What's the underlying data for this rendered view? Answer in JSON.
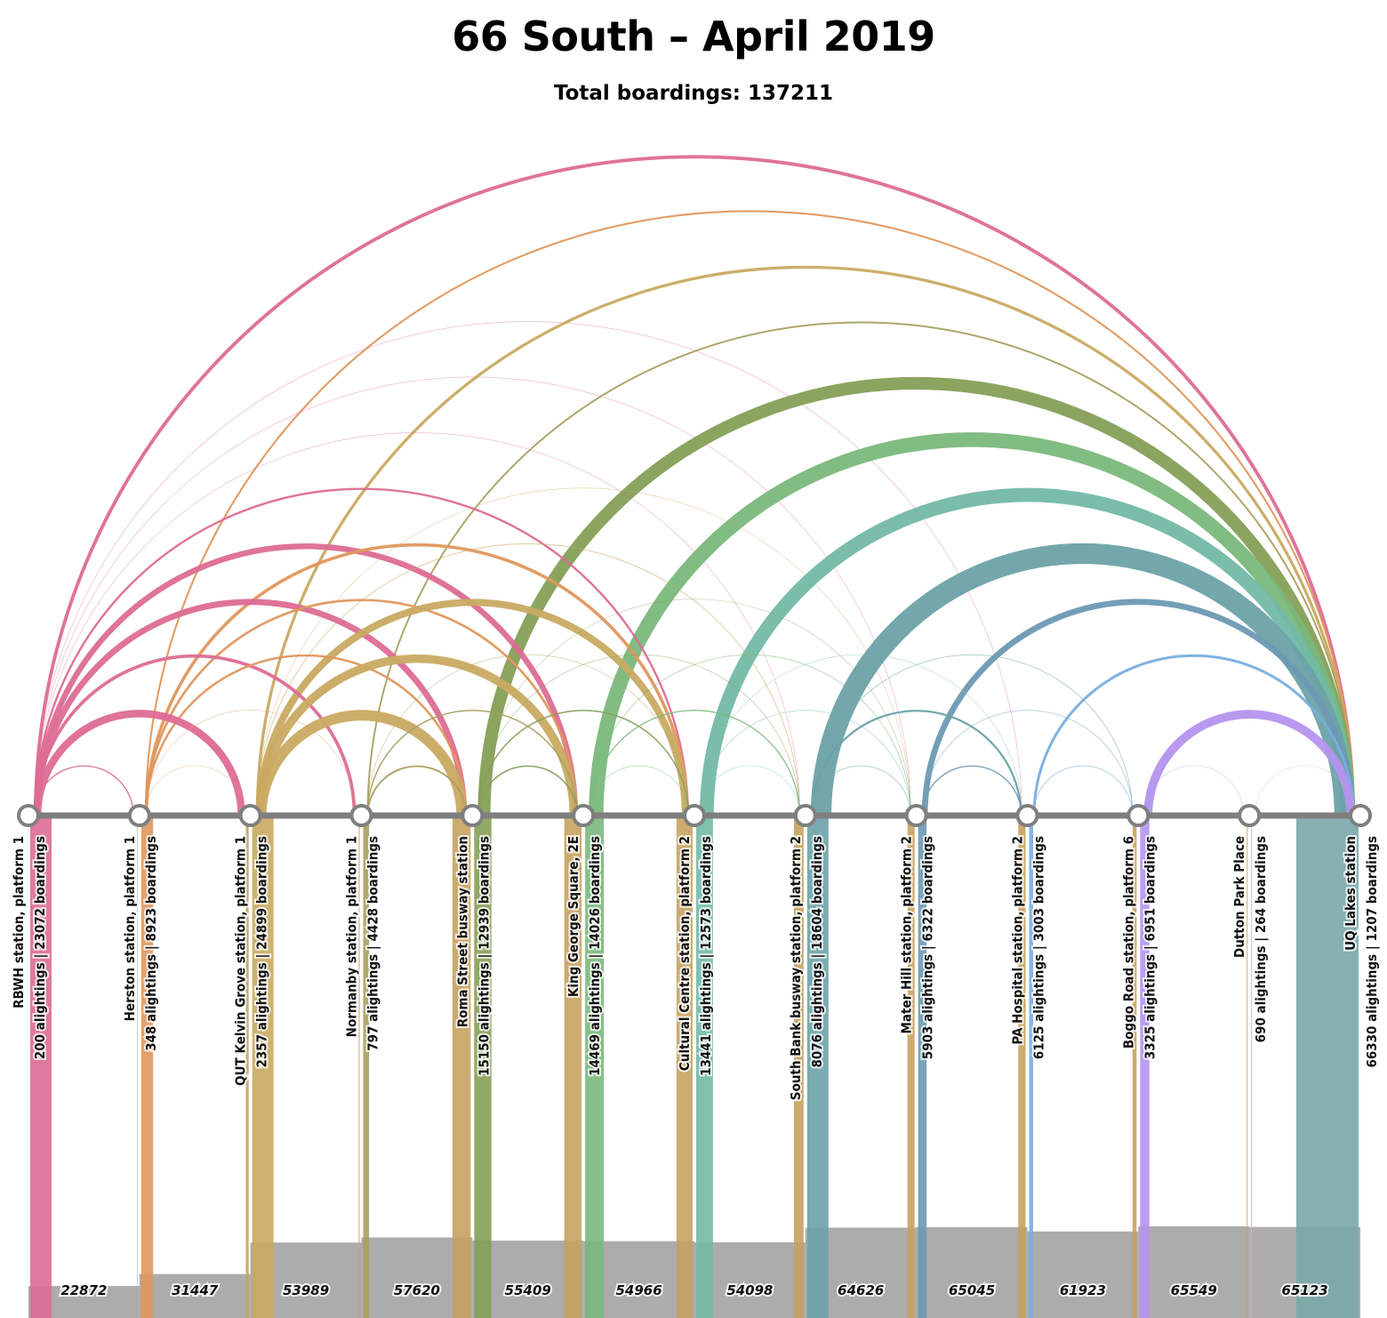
{
  "title": "66 South – April 2019",
  "subtitle": "Total boardings: 137211",
  "chart_data": {
    "type": "arc",
    "stops": [
      {
        "name": "RBWH station, platform 1",
        "alightings": 200,
        "boardings": 23072,
        "stats": "200 alightings | 23072 boardings",
        "color": "#dd6b93"
      },
      {
        "name": "Herston station, platform 1",
        "alightings": 348,
        "boardings": 8923,
        "stats": "348 alightings | 8923 boardings",
        "color": "#e0975d"
      },
      {
        "name": "QUT Kelvin Grove station, platform 1",
        "alightings": 2357,
        "boardings": 24899,
        "stats": "2357 alightings | 24899 boardings",
        "color": "#c9aa62"
      },
      {
        "name": "Normanby station, platform 1",
        "alightings": 797,
        "boardings": 4428,
        "stats": "797 alightings | 4428 boardings",
        "color": "#a9a060"
      },
      {
        "name": "Roma Street busway station",
        "alightings": 15150,
        "boardings": 12939,
        "stats": "15150 alightings | 12939 boardings",
        "color": "#859f57"
      },
      {
        "name": "King George Square, 2E",
        "alightings": 14469,
        "boardings": 14026,
        "stats": "14469 alightings | 14026 boardings",
        "color": "#7ab87c"
      },
      {
        "name": "Cultural Centre station, platform 2",
        "alightings": 13441,
        "boardings": 12573,
        "stats": "13441 alightings | 12573 boardings",
        "color": "#72b9a5"
      },
      {
        "name": "South Bank busway station, platform 2",
        "alightings": 8076,
        "boardings": 18604,
        "stats": "8076 alightings | 18604 boardings",
        "color": "#6ca2a7"
      },
      {
        "name": "Mater Hill station, platform 2",
        "alightings": 5903,
        "boardings": 6322,
        "stats": "5903 alightings | 6322 boardings",
        "color": "#6d99b3"
      },
      {
        "name": "PA Hospital station, platform 2",
        "alightings": 6125,
        "boardings": 3003,
        "stats": "6125 alightings | 3003 boardings",
        "color": "#78aedf"
      },
      {
        "name": "Boggo Road station, platform 6",
        "alightings": 3325,
        "boardings": 6951,
        "stats": "3325 alightings | 6951 boardings",
        "color": "#b494ee"
      },
      {
        "name": "Dutton Park Place",
        "alightings": 690,
        "boardings": 264,
        "stats": "690 alightings | 264 boardings",
        "color": "#e7a6c8"
      },
      {
        "name": "UQ Lakes station",
        "alightings": 66330,
        "boardings": 1207,
        "stats": "66330 alightings | 1207 boardings",
        "color": "#dd6b93"
      }
    ],
    "segment_loads": [
      22872,
      31447,
      53989,
      57620,
      55409,
      54966,
      54098,
      64626,
      65045,
      61923,
      65549,
      65123
    ],
    "flows": [
      {
        "from": 0,
        "to": 12,
        "value": 2600
      },
      {
        "from": 0,
        "to": 5,
        "value": 4300
      },
      {
        "from": 0,
        "to": 4,
        "value": 4600
      },
      {
        "from": 0,
        "to": 3,
        "value": 2500
      },
      {
        "from": 0,
        "to": 2,
        "value": 5600
      },
      {
        "from": 0,
        "to": 1,
        "value": 900
      },
      {
        "from": 0,
        "to": 6,
        "value": 1600
      },
      {
        "from": 0,
        "to": 7,
        "value": 300
      },
      {
        "from": 0,
        "to": 8,
        "value": 400
      },
      {
        "from": 0,
        "to": 9,
        "value": 300
      },
      {
        "from": 1,
        "to": 12,
        "value": 1400
      },
      {
        "from": 1,
        "to": 6,
        "value": 2400
      },
      {
        "from": 1,
        "to": 5,
        "value": 1800
      },
      {
        "from": 1,
        "to": 4,
        "value": 1700
      },
      {
        "from": 1,
        "to": 3,
        "value": 300
      },
      {
        "from": 1,
        "to": 2,
        "value": 300
      },
      {
        "from": 2,
        "to": 12,
        "value": 2200
      },
      {
        "from": 2,
        "to": 4,
        "value": 8000
      },
      {
        "from": 2,
        "to": 5,
        "value": 6400
      },
      {
        "from": 2,
        "to": 6,
        "value": 5400
      },
      {
        "from": 2,
        "to": 7,
        "value": 700
      },
      {
        "from": 2,
        "to": 8,
        "value": 300
      },
      {
        "from": 3,
        "to": 12,
        "value": 1300
      },
      {
        "from": 3,
        "to": 4,
        "value": 1300
      },
      {
        "from": 3,
        "to": 5,
        "value": 1000
      },
      {
        "from": 3,
        "to": 6,
        "value": 500
      },
      {
        "from": 4,
        "to": 12,
        "value": 9500
      },
      {
        "from": 4,
        "to": 6,
        "value": 1000
      },
      {
        "from": 4,
        "to": 7,
        "value": 500
      },
      {
        "from": 4,
        "to": 5,
        "value": 1000
      },
      {
        "from": 4,
        "to": 8,
        "value": 400
      },
      {
        "from": 5,
        "to": 12,
        "value": 11000
      },
      {
        "from": 5,
        "to": 6,
        "value": 500
      },
      {
        "from": 5,
        "to": 7,
        "value": 800
      },
      {
        "from": 5,
        "to": 8,
        "value": 600
      },
      {
        "from": 6,
        "to": 12,
        "value": 10500
      },
      {
        "from": 6,
        "to": 7,
        "value": 300
      },
      {
        "from": 6,
        "to": 8,
        "value": 500
      },
      {
        "from": 6,
        "to": 9,
        "value": 400
      },
      {
        "from": 7,
        "to": 12,
        "value": 15500
      },
      {
        "from": 7,
        "to": 8,
        "value": 600
      },
      {
        "from": 7,
        "to": 9,
        "value": 1500
      },
      {
        "from": 7,
        "to": 10,
        "value": 600
      },
      {
        "from": 8,
        "to": 12,
        "value": 4500
      },
      {
        "from": 8,
        "to": 9,
        "value": 900
      },
      {
        "from": 8,
        "to": 10,
        "value": 500
      },
      {
        "from": 9,
        "to": 12,
        "value": 2000
      },
      {
        "from": 9,
        "to": 10,
        "value": 700
      },
      {
        "from": 10,
        "to": 12,
        "value": 6500
      },
      {
        "from": 10,
        "to": 11,
        "value": 300
      },
      {
        "from": 11,
        "to": 12,
        "value": 260
      }
    ]
  }
}
